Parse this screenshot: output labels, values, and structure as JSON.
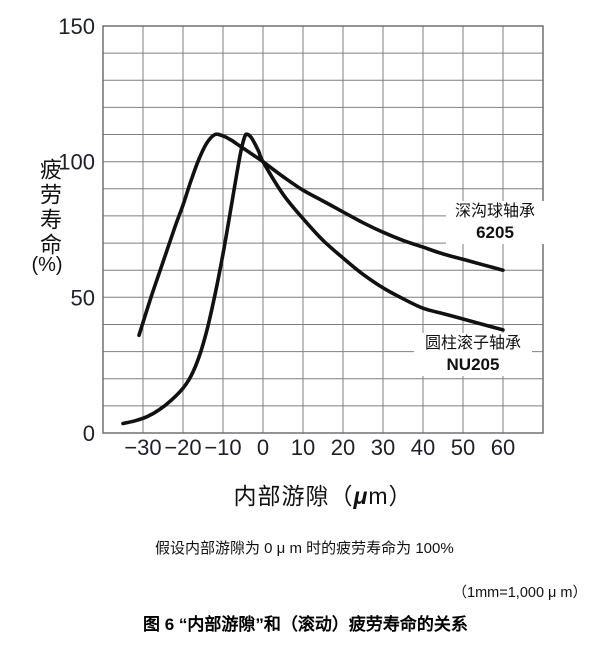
{
  "figure": {
    "y_axis_title": "疲劳寿命",
    "y_axis_unit": "(%)",
    "x_axis_title_prefix": "内部游隙（",
    "x_axis_title_mu": "μ",
    "x_axis_title_suffix": "m）",
    "note_assumption": "假设内部游隙为 0 μ m 时的疲劳寿命为 100%",
    "note_unit": "（1mm=1,000 μ m）",
    "caption": "图 6 “内部游隙”和（滚动）疲劳寿命的关系"
  },
  "chart_data": {
    "type": "line",
    "title": "内部游隙和（滚动）疲劳寿命的关系",
    "xlabel": "内部游隙（μm）",
    "ylabel": "疲劳寿命（%）",
    "xlim": [
      -40,
      70
    ],
    "ylim": [
      0,
      150
    ],
    "grid": true,
    "grid_step_x": 10,
    "grid_step_y": 10,
    "x_tick_labels": [
      -30,
      -20,
      -10,
      0,
      10,
      20,
      30,
      40,
      50,
      60
    ],
    "y_tick_labels": [
      0,
      50,
      100,
      150
    ],
    "grid_color": "#7f7f7f",
    "curve_color": "#111111",
    "series": [
      {
        "name": "深沟球轴承",
        "model": "6205",
        "color": "#111111",
        "points": [
          [
            -31,
            36
          ],
          [
            -28,
            50
          ],
          [
            -25,
            63
          ],
          [
            -22,
            76
          ],
          [
            -20,
            84
          ],
          [
            -18,
            93
          ],
          [
            -16,
            101
          ],
          [
            -14,
            107
          ],
          [
            -12,
            110
          ],
          [
            -10,
            109.5
          ],
          [
            -8,
            108
          ],
          [
            -6,
            106
          ],
          [
            -4,
            104
          ],
          [
            -2,
            102
          ],
          [
            0,
            100
          ],
          [
            5,
            94.5
          ],
          [
            10,
            89.5
          ],
          [
            15,
            85.5
          ],
          [
            20,
            81.5
          ],
          [
            25,
            77.5
          ],
          [
            30,
            74
          ],
          [
            35,
            71
          ],
          [
            40,
            68.5
          ],
          [
            45,
            66
          ],
          [
            50,
            64
          ],
          [
            55,
            62
          ],
          [
            60,
            60
          ]
        ]
      },
      {
        "name": "圆柱滚子轴承",
        "model": "NU205",
        "color": "#111111",
        "points": [
          [
            -35,
            3.5
          ],
          [
            -32,
            4.5
          ],
          [
            -29,
            6
          ],
          [
            -26,
            8.5
          ],
          [
            -23,
            12
          ],
          [
            -20,
            16.5
          ],
          [
            -18,
            21
          ],
          [
            -16,
            28
          ],
          [
            -14,
            38
          ],
          [
            -12,
            51
          ],
          [
            -10,
            66
          ],
          [
            -8,
            83
          ],
          [
            -6.5,
            96
          ],
          [
            -5.5,
            104
          ],
          [
            -4.5,
            109.5
          ],
          [
            -3.8,
            110
          ],
          [
            -3,
            109
          ],
          [
            -2,
            106.5
          ],
          [
            -1,
            103.5
          ],
          [
            0,
            100
          ],
          [
            5,
            88
          ],
          [
            10,
            79
          ],
          [
            15,
            71
          ],
          [
            20,
            64.5
          ],
          [
            25,
            58.5
          ],
          [
            30,
            53.5
          ],
          [
            35,
            49.5
          ],
          [
            40,
            46
          ],
          [
            45,
            44
          ],
          [
            50,
            42
          ],
          [
            55,
            40
          ],
          [
            60,
            38
          ]
        ]
      }
    ]
  }
}
